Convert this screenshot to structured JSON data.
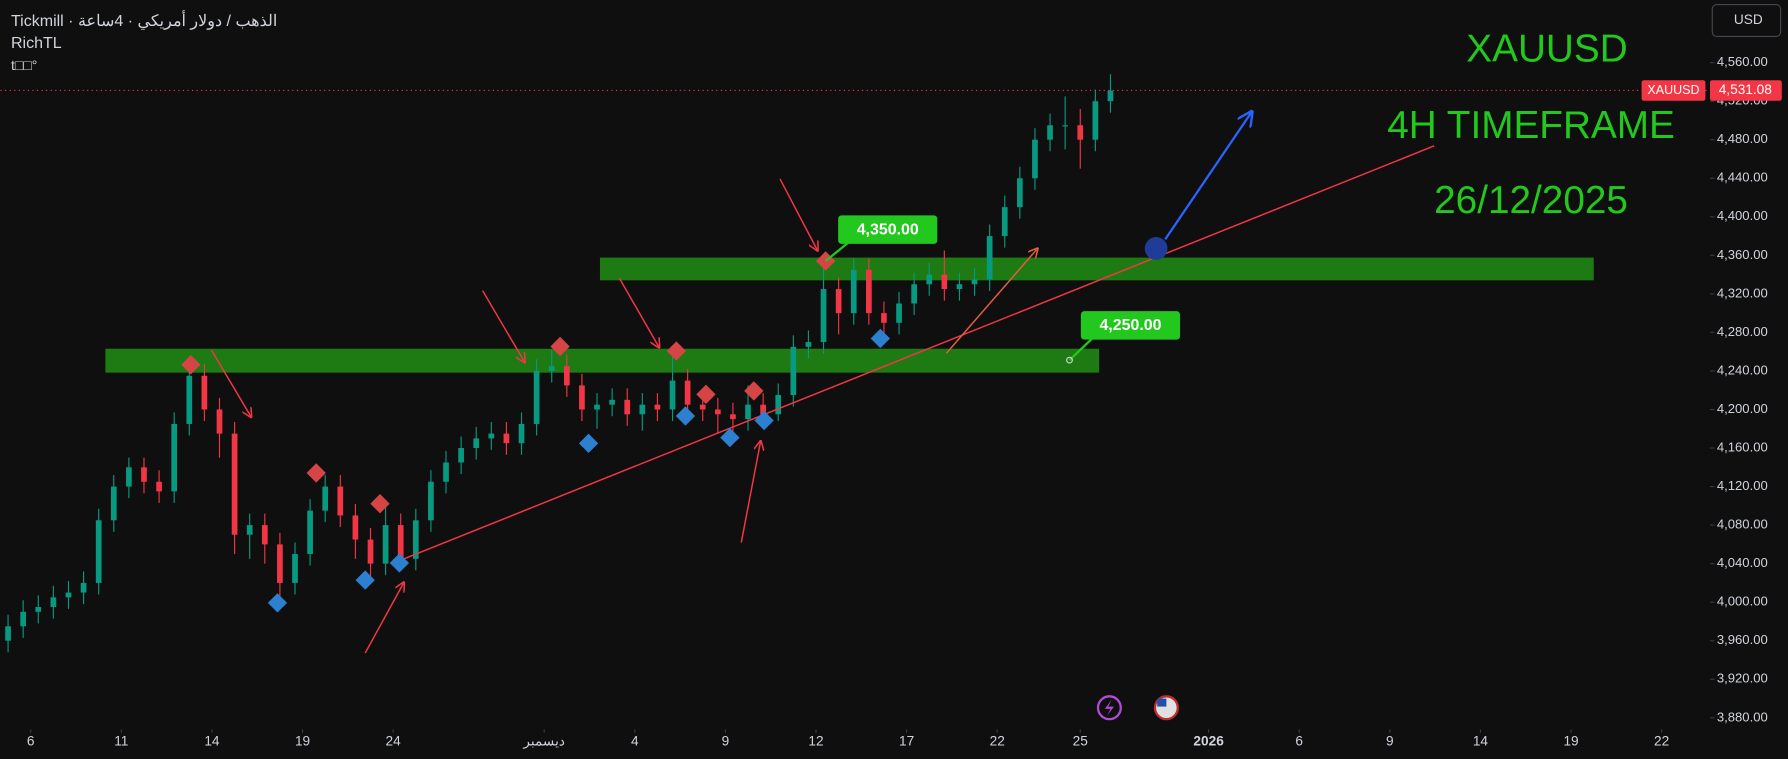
{
  "chart_data": {
    "type": "candlestick",
    "header": {
      "symbol_line": "الذهب / دولار أمريكي · 4ساعة · Tickmill",
      "indicator": "RichTL",
      "indicator_icons": "t□□°"
    },
    "currency_button": "USD",
    "title": "XAUUSD",
    "subtitle": "4H TIMEFRAME",
    "date_text": "26/12/2025",
    "price_tag_symbol": "XAUUSD",
    "last_price": {
      "value": 4531.08,
      "label": "4,531.08"
    },
    "annotations": [
      "4,350.00",
      "4,250.00"
    ],
    "up_color": "#089981",
    "down_color": "#f23645",
    "open": [
      3960,
      3975,
      3990,
      3995,
      4005,
      4010,
      4020,
      4085,
      4120,
      4140,
      4125,
      4115,
      4185,
      4235,
      4200,
      4175,
      4070,
      4080,
      4060,
      4020,
      4050,
      4095,
      4120,
      4090,
      4065,
      4040,
      4080,
      4045,
      4085,
      4125,
      4145,
      4160,
      4170,
      4175,
      4165,
      4185,
      4240,
      4245,
      4225,
      4200,
      4205,
      4210,
      4195,
      4205,
      4200,
      4230,
      4205,
      4200,
      4195,
      4190,
      4205,
      4195,
      4215,
      4265,
      4270,
      4325,
      4300,
      4345,
      4300,
      4290,
      4310,
      4330,
      4340,
      4325,
      4330,
      4335,
      4380,
      4410,
      4440,
      4480,
      4495,
      4495,
      4480,
      4520
    ],
    "high": [
      3987,
      4002,
      4007,
      4017,
      4022,
      4032,
      4097,
      4132,
      4150,
      4150,
      4137,
      4197,
      4248,
      4247,
      4212,
      4187,
      4092,
      4092,
      4072,
      4062,
      4107,
      4132,
      4132,
      4102,
      4077,
      4102,
      4092,
      4097,
      4137,
      4157,
      4172,
      4182,
      4187,
      4187,
      4197,
      4252,
      4262,
      4257,
      4237,
      4217,
      4222,
      4222,
      4217,
      4217,
      4258,
      4242,
      4222,
      4212,
      4207,
      4225,
      4217,
      4227,
      4277,
      4282,
      4352,
      4337,
      4357,
      4357,
      4312,
      4322,
      4342,
      4352,
      4365,
      4342,
      4347,
      4392,
      4422,
      4452,
      4492,
      4507,
      4525,
      4512,
      4532,
      4548
    ],
    "low": [
      3948,
      3963,
      3978,
      3983,
      3993,
      3998,
      4008,
      4073,
      4108,
      4113,
      4103,
      4103,
      4173,
      4188,
      4150,
      4050,
      4045,
      4040,
      4000,
      4008,
      4038,
      4083,
      4078,
      4045,
      4022,
      4028,
      4038,
      4033,
      4073,
      4113,
      4133,
      4148,
      4158,
      4153,
      4153,
      4173,
      4228,
      4213,
      4188,
      4180,
      4193,
      4183,
      4178,
      4188,
      4188,
      4193,
      4188,
      4175,
      4170,
      4178,
      4183,
      4188,
      4203,
      4253,
      4258,
      4278,
      4288,
      4288,
      4273,
      4278,
      4298,
      4318,
      4313,
      4313,
      4318,
      4323,
      4368,
      4398,
      4428,
      4468,
      4470,
      4450,
      4468,
      4508
    ],
    "close": [
      3975,
      3990,
      3995,
      4005,
      4010,
      4020,
      4085,
      4120,
      4140,
      4125,
      4115,
      4185,
      4235,
      4200,
      4175,
      4070,
      4080,
      4060,
      4020,
      4050,
      4095,
      4120,
      4090,
      4065,
      4040,
      4080,
      4045,
      4085,
      4125,
      4145,
      4160,
      4170,
      4175,
      4165,
      4185,
      4240,
      4245,
      4225,
      4200,
      4205,
      4210,
      4195,
      4205,
      4200,
      4230,
      4205,
      4200,
      4195,
      4190,
      4205,
      4195,
      4215,
      4265,
      4270,
      4325,
      4300,
      4345,
      4300,
      4290,
      4310,
      4330,
      4340,
      4325,
      4330,
      4335,
      4380,
      4410,
      4440,
      4480,
      4495,
      4495,
      4480,
      4520,
      4531
    ],
    "ylim": [
      3868,
      4625
    ],
    "yticks": [
      {
        "value": 4560,
        "label": "4,560.00"
      },
      {
        "value": 4520,
        "label": "4,520.00"
      },
      {
        "value": 4480,
        "label": "4,480.00"
      },
      {
        "value": 4440,
        "label": "4,440.00"
      },
      {
        "value": 4400,
        "label": "4,400.00"
      },
      {
        "value": 4360,
        "label": "4,360.00"
      },
      {
        "value": 4320,
        "label": "4,320.00"
      },
      {
        "value": 4280,
        "label": "4,280.00"
      },
      {
        "value": 4240,
        "label": "4,240.00"
      },
      {
        "value": 4200,
        "label": "4,200.00"
      },
      {
        "value": 4160,
        "label": "4,160.00"
      },
      {
        "value": 4120,
        "label": "4,120.00"
      },
      {
        "value": 4080,
        "label": "4,080.00"
      },
      {
        "value": 4040,
        "label": "4,040.00"
      },
      {
        "value": 4000,
        "label": "4,000.00"
      },
      {
        "value": 3960,
        "label": "3,960.00"
      },
      {
        "value": 3920,
        "label": "3,920.00"
      },
      {
        "value": 3880,
        "label": "3,880.00"
      }
    ],
    "xlim": [
      0,
      113.2
    ],
    "xticks": [
      {
        "value": 2,
        "label": "6"
      },
      {
        "value": 8,
        "label": "11"
      },
      {
        "value": 14,
        "label": "14"
      },
      {
        "value": 20,
        "label": "19"
      },
      {
        "value": 26,
        "label": "24"
      },
      {
        "value": 36,
        "label": "ديسمبر"
      },
      {
        "value": 42,
        "label": "4"
      },
      {
        "value": 48,
        "label": "9"
      },
      {
        "value": 54,
        "label": "12"
      },
      {
        "value": 60,
        "label": "17"
      },
      {
        "value": 66,
        "label": "22"
      },
      {
        "value": 71.5,
        "label": "25"
      },
      {
        "value": 80,
        "label": "2026"
      },
      {
        "value": 86,
        "label": "6"
      },
      {
        "value": 92,
        "label": "9"
      },
      {
        "value": 98,
        "label": "14"
      },
      {
        "value": 104,
        "label": "19"
      },
      {
        "value": 110,
        "label": "22"
      }
    ],
    "grid": false
  }
}
